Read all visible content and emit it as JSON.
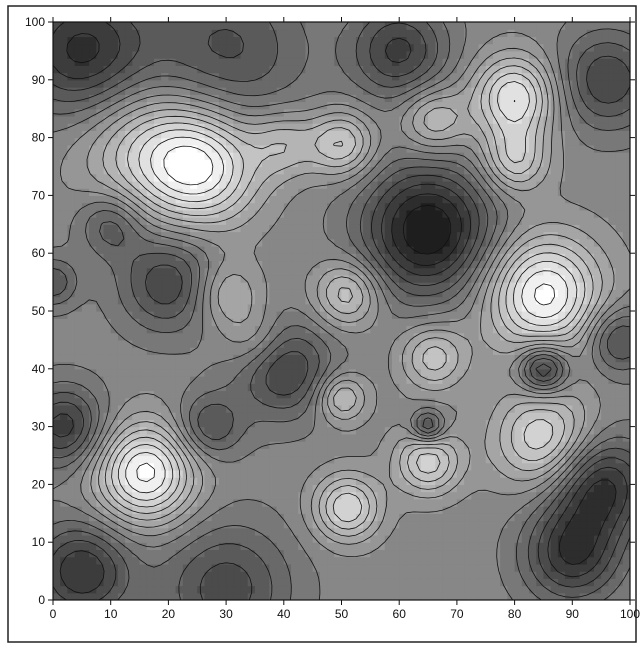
{
  "chart_data": {
    "type": "heatmap",
    "subtype": "filled-contour",
    "title": "",
    "xlabel": "",
    "ylabel": "",
    "xlim": [
      0,
      100
    ],
    "ylim": [
      0,
      100
    ],
    "x_ticks": [
      0,
      10,
      20,
      30,
      40,
      50,
      60,
      70,
      80,
      90,
      100
    ],
    "y_ticks": [
      0,
      10,
      20,
      30,
      40,
      50,
      60,
      70,
      80,
      90,
      100
    ],
    "colormap": "grayscale (dark = low, white = high)",
    "colors": {
      "low": "#1e1e1e",
      "high": "#ffffff",
      "contour_line": "#111111"
    },
    "grid": false,
    "legend": "none",
    "features": [
      {
        "kind": "high",
        "x": 26,
        "y": 75,
        "spread": 7,
        "amp": 1.0
      },
      {
        "kind": "high",
        "x": 16,
        "y": 78,
        "spread": 8,
        "amp": 0.6
      },
      {
        "kind": "high",
        "x": 40,
        "y": 79,
        "spread": 4,
        "amp": 0.45
      },
      {
        "kind": "high",
        "x": 50,
        "y": 79,
        "spread": 4,
        "amp": 0.7
      },
      {
        "kind": "high",
        "x": 66,
        "y": 83,
        "spread": 4,
        "amp": 0.55
      },
      {
        "kind": "high",
        "x": 80,
        "y": 87,
        "spread": 5,
        "amp": 0.95
      },
      {
        "kind": "high",
        "x": 80,
        "y": 76,
        "spread": 4,
        "amp": 0.65
      },
      {
        "kind": "high",
        "x": 85,
        "y": 53,
        "spread": 7,
        "amp": 1.15
      },
      {
        "kind": "high",
        "x": 51,
        "y": 53,
        "spread": 4,
        "amp": 0.65
      },
      {
        "kind": "high",
        "x": 50,
        "y": 35,
        "spread": 3,
        "amp": 0.6
      },
      {
        "kind": "high",
        "x": 66,
        "y": 42,
        "spread": 4,
        "amp": 0.6
      },
      {
        "kind": "high",
        "x": 65,
        "y": 24,
        "spread": 4,
        "amp": 0.75
      },
      {
        "kind": "high",
        "x": 85,
        "y": 28,
        "spread": 6,
        "amp": 0.8
      },
      {
        "kind": "high",
        "x": 51,
        "y": 16,
        "spread": 4,
        "amp": 0.8
      },
      {
        "kind": "high",
        "x": 16,
        "y": 22,
        "spread": 6,
        "amp": 1.15
      },
      {
        "kind": "high",
        "x": 30,
        "y": 53,
        "spread": 4,
        "amp": 0.45
      },
      {
        "kind": "high",
        "x": 35,
        "y": 45,
        "spread": 4,
        "amp": 0.35
      },
      {
        "kind": "low",
        "x": 65,
        "y": 64,
        "spread": 8,
        "amp": 1.1
      },
      {
        "kind": "low",
        "x": 85,
        "y": 40,
        "spread": 3,
        "amp": 0.9
      },
      {
        "kind": "low",
        "x": 65,
        "y": 30,
        "spread": 2,
        "amp": 0.7
      },
      {
        "kind": "low",
        "x": 95,
        "y": 20,
        "spread": 6,
        "amp": 0.85
      },
      {
        "kind": "low",
        "x": 90,
        "y": 8,
        "spread": 6,
        "amp": 0.8
      },
      {
        "kind": "low",
        "x": 5,
        "y": 5,
        "spread": 6,
        "amp": 0.8
      },
      {
        "kind": "low",
        "x": 40,
        "y": 40,
        "spread": 6,
        "amp": 0.7
      },
      {
        "kind": "low",
        "x": 2,
        "y": 30,
        "spread": 5,
        "amp": 0.75
      },
      {
        "kind": "low",
        "x": 20,
        "y": 55,
        "spread": 6,
        "amp": 0.65
      },
      {
        "kind": "low",
        "x": 10,
        "y": 65,
        "spread": 4,
        "amp": 0.5
      },
      {
        "kind": "low",
        "x": 5,
        "y": 95,
        "spread": 8,
        "amp": 0.85
      },
      {
        "kind": "low",
        "x": 30,
        "y": 95,
        "spread": 10,
        "amp": 0.55
      },
      {
        "kind": "low",
        "x": 60,
        "y": 95,
        "spread": 6,
        "amp": 0.7
      },
      {
        "kind": "low",
        "x": 96,
        "y": 90,
        "spread": 6,
        "amp": 0.65
      },
      {
        "kind": "low",
        "x": 27,
        "y": 30,
        "spread": 4,
        "amp": 0.55
      },
      {
        "kind": "low",
        "x": 30,
        "y": 2,
        "spread": 8,
        "amp": 0.6
      },
      {
        "kind": "low",
        "x": 98,
        "y": 45,
        "spread": 4,
        "amp": 0.6
      },
      {
        "kind": "low",
        "x": 0,
        "y": 55,
        "spread": 3,
        "amp": 0.5
      }
    ]
  }
}
